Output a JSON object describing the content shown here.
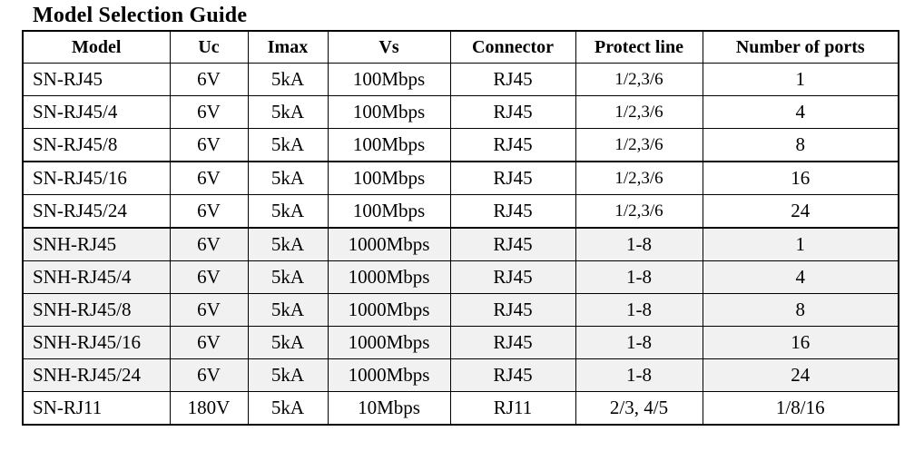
{
  "title": "Model Selection Guide",
  "headers": [
    "Model",
    "Uc",
    "Imax",
    "Vs",
    "Connector",
    "Protect line",
    "Number of ports"
  ],
  "rows": [
    {
      "model": "SN-RJ45",
      "uc": "6V",
      "imax": "5kA",
      "vs": "100Mbps",
      "connector": "RJ45",
      "protect": "1/2,3/6",
      "ports": "1"
    },
    {
      "model": "SN-RJ45/4",
      "uc": "6V",
      "imax": "5kA",
      "vs": "100Mbps",
      "connector": "RJ45",
      "protect": "1/2,3/6",
      "ports": "4"
    },
    {
      "model": "SN-RJ45/8",
      "uc": "6V",
      "imax": "5kA",
      "vs": "100Mbps",
      "connector": "RJ45",
      "protect": "1/2,3/6",
      "ports": "8"
    },
    {
      "model": "SN-RJ45/16",
      "uc": "6V",
      "imax": "5kA",
      "vs": "100Mbps",
      "connector": "RJ45",
      "protect": "1/2,3/6",
      "ports": "16"
    },
    {
      "model": "SN-RJ45/24",
      "uc": "6V",
      "imax": "5kA",
      "vs": "100Mbps",
      "connector": "RJ45",
      "protect": "1/2,3/6",
      "ports": "24"
    },
    {
      "model": "SNH-RJ45",
      "uc": "6V",
      "imax": "5kA",
      "vs": "1000Mbps",
      "connector": "RJ45",
      "protect": "1-8",
      "ports": "1"
    },
    {
      "model": "SNH-RJ45/4",
      "uc": "6V",
      "imax": "5kA",
      "vs": "1000Mbps",
      "connector": "RJ45",
      "protect": "1-8",
      "ports": "4"
    },
    {
      "model": "SNH-RJ45/8",
      "uc": "6V",
      "imax": "5kA",
      "vs": "1000Mbps",
      "connector": "RJ45",
      "protect": "1-8",
      "ports": "8"
    },
    {
      "model": "SNH-RJ45/16",
      "uc": "6V",
      "imax": "5kA",
      "vs": "1000Mbps",
      "connector": "RJ45",
      "protect": "1-8",
      "ports": "16"
    },
    {
      "model": "SNH-RJ45/24",
      "uc": "6V",
      "imax": "5kA",
      "vs": "1000Mbps",
      "connector": "RJ45",
      "protect": "1-8",
      "ports": "24"
    },
    {
      "model": "SN-RJ11",
      "uc": "180V",
      "imax": "5kA",
      "vs": "10Mbps",
      "connector": "RJ11",
      "protect": "2/3, 4/5",
      "ports": "1/8/16"
    }
  ]
}
